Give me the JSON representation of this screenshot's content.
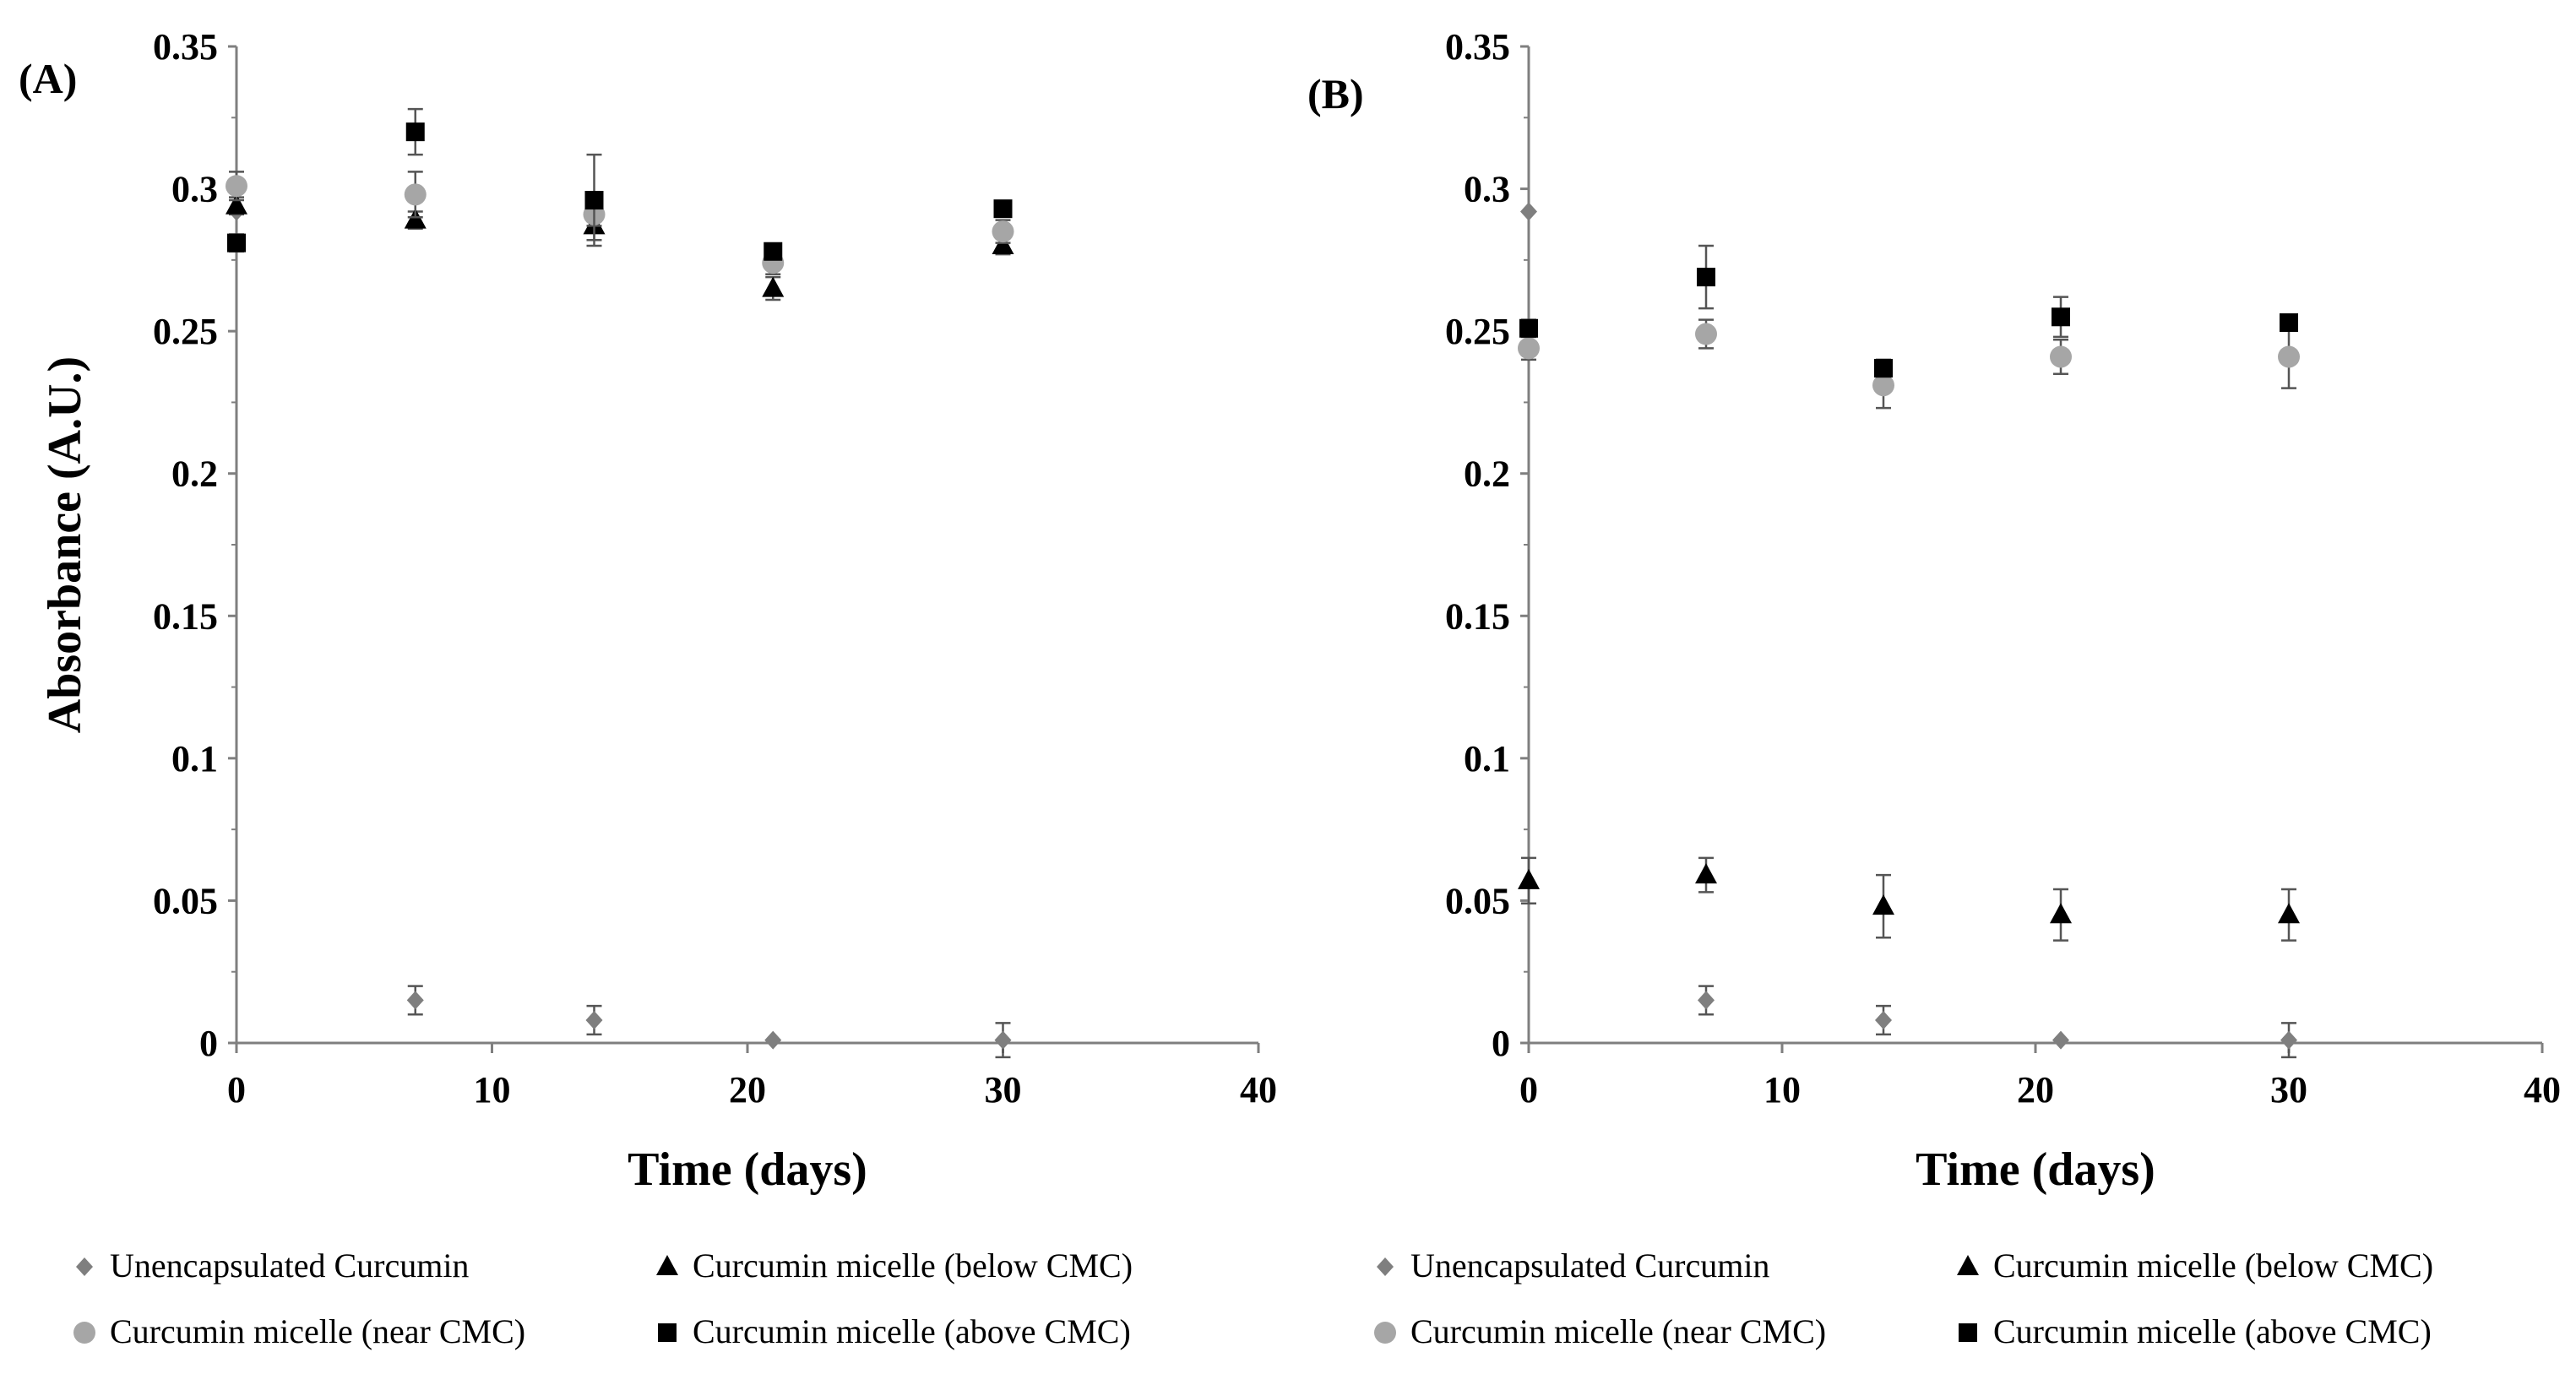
{
  "chart_data": [
    {
      "type": "scatter",
      "panel_label": "(A)",
      "xlabel": "Time (days)",
      "ylabel": "Absorbance (A.U.)",
      "xlim": [
        0,
        40
      ],
      "ylim": [
        0,
        0.35
      ],
      "x_ticks": [
        0,
        10,
        20,
        30,
        40
      ],
      "x_tick_labels": [
        "0",
        "10",
        "20",
        "30",
        "40"
      ],
      "y_ticks": [
        0,
        0.05,
        0.1,
        0.15,
        0.2,
        0.25,
        0.3,
        0.35
      ],
      "y_tick_labels": [
        "0",
        "0.05",
        "0.1",
        "0.15",
        "0.2",
        "0.25",
        "0.3",
        "0.35"
      ],
      "legend_position": "bottom",
      "series": [
        {
          "name": "Unencapsulated Curcumin",
          "marker": "diamond",
          "color": "#7f7f7f",
          "x": [
            0,
            7,
            14,
            21,
            30
          ],
          "y": [
            0.292,
            0.015,
            0.008,
            0.001,
            0.001
          ],
          "err": [
            0,
            0.005,
            0.005,
            0,
            0.006
          ]
        },
        {
          "name": "Curcumin micelle (below CMC)",
          "marker": "triangle",
          "color": "#000000",
          "x": [
            0,
            7,
            14,
            21,
            30
          ],
          "y": [
            0.294,
            0.289,
            0.287,
            0.265,
            0.28
          ],
          "err": [
            0.003,
            0.003,
            0.005,
            0.004,
            0.003
          ]
        },
        {
          "name": "Curcumin micelle (near CMC)",
          "marker": "circle",
          "color": "#a6a6a6",
          "x": [
            0,
            7,
            14,
            21,
            30
          ],
          "y": [
            0.301,
            0.298,
            0.291,
            0.274,
            0.285
          ],
          "err": [
            0.005,
            0.008,
            0.004,
            0.004,
            0.004
          ]
        },
        {
          "name": "Curcumin micelle (above CMC)",
          "marker": "square",
          "color": "#000000",
          "x": [
            0,
            7,
            14,
            21,
            30
          ],
          "y": [
            0.281,
            0.32,
            0.296,
            0.278,
            0.293
          ],
          "err": [
            0.003,
            0.008,
            0.016,
            0.002,
            0.002
          ]
        }
      ]
    },
    {
      "type": "scatter",
      "panel_label": "(B)",
      "xlabel": "Time (days)",
      "ylabel": "",
      "xlim": [
        0,
        40
      ],
      "ylim": [
        0,
        0.35
      ],
      "x_ticks": [
        0,
        10,
        20,
        30,
        40
      ],
      "x_tick_labels": [
        "0",
        "10",
        "20",
        "30",
        "40"
      ],
      "y_ticks": [
        0,
        0.05,
        0.1,
        0.15,
        0.2,
        0.25,
        0.3,
        0.35
      ],
      "y_tick_labels": [
        "0",
        "0.05",
        "0.1",
        "0.15",
        "0.2",
        "0.25",
        "0.3",
        "0.35"
      ],
      "legend_position": "bottom",
      "series": [
        {
          "name": "Unencapsulated Curcumin",
          "marker": "diamond",
          "color": "#7f7f7f",
          "x": [
            0,
            7,
            14,
            21,
            30
          ],
          "y": [
            0.292,
            0.015,
            0.008,
            0.001,
            0.001
          ],
          "err": [
            0,
            0.005,
            0.005,
            0,
            0.006
          ]
        },
        {
          "name": "Curcumin micelle (below CMC)",
          "marker": "triangle",
          "color": "#000000",
          "x": [
            0,
            7,
            14,
            21,
            30
          ],
          "y": [
            0.057,
            0.059,
            0.048,
            0.045,
            0.045
          ],
          "err": [
            0.008,
            0.006,
            0.011,
            0.009,
            0.009
          ]
        },
        {
          "name": "Curcumin micelle (near CMC)",
          "marker": "circle",
          "color": "#a6a6a6",
          "x": [
            0,
            7,
            14,
            21,
            30
          ],
          "y": [
            0.244,
            0.249,
            0.231,
            0.241,
            0.241
          ],
          "err": [
            0.004,
            0.005,
            0.008,
            0.006,
            0.011
          ]
        },
        {
          "name": "Curcumin micelle (above CMC)",
          "marker": "square",
          "color": "#000000",
          "x": [
            0,
            7,
            14,
            21,
            30
          ],
          "y": [
            0.251,
            0.269,
            0.237,
            0.255,
            0.253
          ],
          "err": [
            0.003,
            0.011,
            0.003,
            0.007,
            0.002
          ]
        }
      ]
    }
  ]
}
